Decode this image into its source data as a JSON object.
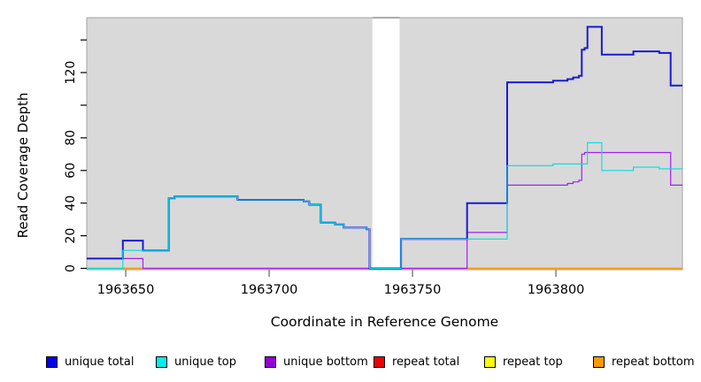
{
  "figure": {
    "x_label": "Coordinate in Reference Genome",
    "y_label": "Read Coverage Depth"
  },
  "chart_data": {
    "type": "line",
    "subtype": "step-coverage",
    "title": "",
    "xlabel": "Coordinate in Reference Genome",
    "ylabel": "Read Coverage Depth",
    "x_range": [
      1963636.4,
      1963844.1
    ],
    "ylim": [
      0,
      153.7
    ],
    "grid": "off",
    "plot_bg": "#d9d9d9",
    "plot_border": "#a3a3a3",
    "gap": {
      "start": 1963736,
      "end": 1963745.5,
      "fill": "#ffffff"
    },
    "x_ticks": [
      {
        "coord": 1963650,
        "label": "1963650"
      },
      {
        "coord": 1963700,
        "label": "1963700"
      },
      {
        "coord": 1963750,
        "label": "1963750"
      },
      {
        "coord": 1963800,
        "label": "1963800"
      }
    ],
    "y_ticks": [
      {
        "value": 0,
        "label": "0"
      },
      {
        "value": 20,
        "label": "20"
      },
      {
        "value": 40,
        "label": "40"
      },
      {
        "value": 60,
        "label": "60"
      },
      {
        "value": 80,
        "label": "80"
      },
      {
        "value": 100,
        "label": ""
      },
      {
        "value": 120,
        "label": "120"
      },
      {
        "value": 140,
        "label": ""
      }
    ],
    "series": [
      {
        "name": "repeat total",
        "color": "#ee0000",
        "width": 1.2,
        "points": [
          [
            1963636.4,
            0
          ]
        ]
      },
      {
        "name": "repeat top",
        "color": "#ffff00",
        "width": 1.2,
        "points": [
          [
            1963636.4,
            0
          ]
        ]
      },
      {
        "name": "repeat bottom",
        "color": "#ff9900",
        "width": 1.2,
        "points": [
          [
            1963636.4,
            0
          ]
        ]
      },
      {
        "name": "unique bottom",
        "color": "#a020f0",
        "width": 1.2,
        "points": [
          [
            1963636.4,
            6
          ],
          [
            1963656,
            0
          ],
          [
            1963769,
            22
          ],
          [
            1963783,
            51
          ],
          [
            1963804,
            52
          ],
          [
            1963806,
            53
          ],
          [
            1963808,
            54
          ],
          [
            1963809,
            70
          ],
          [
            1963810,
            71
          ],
          [
            1963840,
            51
          ]
        ]
      },
      {
        "name": "unique total",
        "color": "#1a1ad2",
        "width": 2.0,
        "points": [
          [
            1963636.4,
            6
          ],
          [
            1963649,
            17
          ],
          [
            1963656,
            11
          ],
          [
            1963665,
            43
          ],
          [
            1963667,
            44
          ],
          [
            1963689,
            42
          ],
          [
            1963712,
            41
          ],
          [
            1963714,
            39
          ],
          [
            1963718,
            28
          ],
          [
            1963723,
            27
          ],
          [
            1963726,
            25
          ],
          [
            1963734,
            24
          ],
          [
            1963735,
            0
          ],
          [
            1963746,
            18
          ],
          [
            1963769,
            40
          ],
          [
            1963783,
            114
          ],
          [
            1963799,
            115
          ],
          [
            1963804,
            116
          ],
          [
            1963806,
            117
          ],
          [
            1963808,
            118
          ],
          [
            1963809,
            134
          ],
          [
            1963810,
            135
          ],
          [
            1963811,
            148
          ],
          [
            1963816,
            131
          ],
          [
            1963827,
            133
          ],
          [
            1963836,
            132
          ],
          [
            1963840,
            112
          ]
        ]
      },
      {
        "name": "unique top",
        "color": "#00dddd",
        "width": 1.1,
        "points": [
          [
            1963636.4,
            0
          ],
          [
            1963649,
            11
          ],
          [
            1963665,
            43
          ],
          [
            1963667,
            44
          ],
          [
            1963689,
            42
          ],
          [
            1963712,
            41
          ],
          [
            1963714,
            39
          ],
          [
            1963718,
            28
          ],
          [
            1963723,
            27
          ],
          [
            1963726,
            25
          ],
          [
            1963734,
            24
          ],
          [
            1963735,
            0
          ],
          [
            1963746,
            18
          ],
          [
            1963783,
            63
          ],
          [
            1963799,
            64
          ],
          [
            1963811,
            77
          ],
          [
            1963816,
            60
          ],
          [
            1963827,
            62
          ],
          [
            1963836,
            61
          ]
        ]
      }
    ]
  },
  "legend": {
    "items": [
      {
        "label": "unique total",
        "color": "#0000ee"
      },
      {
        "label": "unique top",
        "color": "#00eeee"
      },
      {
        "label": "unique bottom",
        "color": "#9400d3"
      },
      {
        "label": "repeat total",
        "color": "#ee0000"
      },
      {
        "label": "repeat top",
        "color": "#ffff00"
      },
      {
        "label": "repeat bottom",
        "color": "#ff9900"
      }
    ]
  }
}
